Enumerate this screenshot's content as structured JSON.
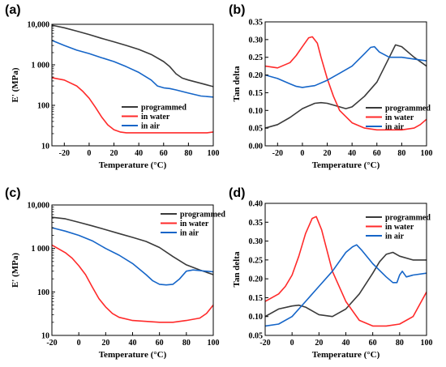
{
  "figure": {
    "axis_labels": {
      "x": "Temperature (°C)",
      "y_modulus": "E' (MPa)",
      "y_tan": "Tan delta"
    },
    "series_names": [
      "programmed",
      "in water",
      "in air"
    ],
    "colors": {
      "programmed": "#3a3a3a",
      "in water": "#ff2a2a",
      "in air": "#1565c8"
    }
  },
  "chart_data": [
    {
      "panel": "(a)",
      "type": "line",
      "xlabel": "Temperature (°C)",
      "ylabel": "E' (MPa)",
      "xlim": [
        -30,
        100
      ],
      "ylim": [
        10,
        10000
      ],
      "yscale": "log",
      "xticks": [
        -20,
        0,
        20,
        40,
        60,
        80,
        100
      ],
      "yticks": [
        10,
        100,
        1000,
        10000
      ],
      "ytick_labels": [
        "10",
        "100",
        "1 000",
        "10,000"
      ],
      "legend": "center-right",
      "series": [
        {
          "name": "programmed",
          "color": "#3a3a3a",
          "x": [
            -30,
            -20,
            -10,
            0,
            10,
            20,
            30,
            40,
            50,
            60,
            65,
            70,
            75,
            80,
            90,
            100
          ],
          "y": [
            9500,
            8200,
            6800,
            5600,
            4500,
            3700,
            3000,
            2400,
            1800,
            1200,
            900,
            600,
            470,
            420,
            350,
            290
          ]
        },
        {
          "name": "in water",
          "color": "#ff2a2a",
          "x": [
            -30,
            -20,
            -10,
            -5,
            0,
            5,
            10,
            15,
            20,
            25,
            30,
            40,
            60,
            80,
            95,
            100
          ],
          "y": [
            480,
            420,
            300,
            220,
            150,
            90,
            52,
            33,
            25,
            22,
            21,
            21,
            21,
            21,
            21,
            22
          ]
        },
        {
          "name": "in air",
          "color": "#1565c8",
          "x": [
            -30,
            -20,
            -10,
            0,
            10,
            20,
            30,
            40,
            50,
            55,
            60,
            65,
            70,
            80,
            90,
            100
          ],
          "y": [
            4000,
            3000,
            2300,
            1900,
            1500,
            1200,
            900,
            650,
            420,
            300,
            270,
            260,
            240,
            200,
            170,
            160
          ]
        }
      ]
    },
    {
      "panel": "(b)",
      "type": "line",
      "xlabel": "Temperature (°C)",
      "ylabel": "Tan delta",
      "xlim": [
        -30,
        100
      ],
      "ylim": [
        0.0,
        0.35
      ],
      "xticks": [
        -20,
        0,
        20,
        40,
        60,
        80,
        100
      ],
      "yticks": [
        0.0,
        0.05,
        0.1,
        0.15,
        0.2,
        0.25,
        0.3,
        0.35
      ],
      "ytick_labels": [
        "0.00",
        "0.05",
        "0.10",
        "0.15",
        "0.20",
        "0.25",
        "0.30",
        "0.35"
      ],
      "legend": "lower-right",
      "series": [
        {
          "name": "programmed",
          "color": "#3a3a3a",
          "x": [
            -30,
            -20,
            -10,
            0,
            10,
            15,
            20,
            30,
            35,
            40,
            50,
            60,
            70,
            75,
            80,
            90,
            100
          ],
          "y": [
            0.05,
            0.06,
            0.08,
            0.105,
            0.12,
            0.122,
            0.12,
            0.11,
            0.105,
            0.11,
            0.14,
            0.18,
            0.25,
            0.285,
            0.28,
            0.25,
            0.225
          ]
        },
        {
          "name": "in water",
          "color": "#ff2a2a",
          "x": [
            -30,
            -20,
            -10,
            -5,
            0,
            5,
            8,
            12,
            15,
            20,
            25,
            30,
            40,
            50,
            60,
            70,
            80,
            90,
            95,
            100
          ],
          "y": [
            0.225,
            0.22,
            0.235,
            0.255,
            0.28,
            0.305,
            0.308,
            0.29,
            0.25,
            0.19,
            0.14,
            0.1,
            0.065,
            0.05,
            0.045,
            0.045,
            0.045,
            0.05,
            0.06,
            0.075
          ]
        },
        {
          "name": "in air",
          "color": "#1565c8",
          "x": [
            -30,
            -20,
            -10,
            -5,
            0,
            10,
            20,
            30,
            40,
            50,
            55,
            58,
            62,
            70,
            80,
            90,
            100
          ],
          "y": [
            0.2,
            0.19,
            0.175,
            0.168,
            0.165,
            0.17,
            0.185,
            0.205,
            0.225,
            0.26,
            0.278,
            0.28,
            0.265,
            0.25,
            0.25,
            0.245,
            0.24
          ]
        }
      ]
    },
    {
      "panel": "(c)",
      "type": "line",
      "xlabel": "Temperature (°C)",
      "ylabel": "E' (MPa)",
      "xlim": [
        -20,
        100
      ],
      "ylim": [
        10,
        10000
      ],
      "yscale": "log",
      "xticks": [
        -20,
        0,
        20,
        40,
        60,
        80,
        100
      ],
      "yticks": [
        10,
        100,
        1000,
        10000
      ],
      "ytick_labels": [
        "10",
        "100",
        "1 000",
        "10,000"
      ],
      "legend": "top-right",
      "series": [
        {
          "name": "programmed",
          "color": "#3a3a3a",
          "x": [
            -20,
            -10,
            0,
            10,
            20,
            30,
            40,
            50,
            60,
            70,
            80,
            90,
            100
          ],
          "y": [
            5200,
            4800,
            4000,
            3300,
            2700,
            2200,
            1800,
            1450,
            1050,
            650,
            420,
            320,
            250
          ]
        },
        {
          "name": "in water",
          "color": "#ff2a2a",
          "x": [
            -20,
            -10,
            -5,
            0,
            5,
            10,
            15,
            20,
            25,
            30,
            40,
            50,
            60,
            70,
            80,
            90,
            95,
            100
          ],
          "y": [
            1200,
            800,
            600,
            400,
            250,
            130,
            70,
            45,
            32,
            26,
            22,
            21,
            20,
            20,
            22,
            25,
            32,
            50
          ]
        },
        {
          "name": "in air",
          "color": "#1565c8",
          "x": [
            -20,
            -10,
            0,
            10,
            20,
            30,
            40,
            50,
            55,
            60,
            65,
            70,
            75,
            80,
            85,
            90,
            100
          ],
          "y": [
            3000,
            2500,
            2000,
            1500,
            1000,
            700,
            450,
            250,
            180,
            150,
            145,
            150,
            200,
            300,
            320,
            310,
            290
          ]
        }
      ]
    },
    {
      "panel": "(d)",
      "type": "line",
      "xlabel": "Temperature (°C)",
      "ylabel": "Tan delta",
      "xlim": [
        -20,
        100
      ],
      "ylim": [
        0.05,
        0.4
      ],
      "xticks": [
        -20,
        0,
        20,
        40,
        60,
        80,
        100
      ],
      "yticks": [
        0.05,
        0.1,
        0.15,
        0.2,
        0.25,
        0.3,
        0.35,
        0.4
      ],
      "ytick_labels": [
        "0.05",
        "0.10",
        "0.15",
        "0.20",
        "0.25",
        "0.30",
        "0.35",
        "0.40"
      ],
      "legend": "top-right",
      "series": [
        {
          "name": "programmed",
          "color": "#3a3a3a",
          "x": [
            -20,
            -10,
            0,
            5,
            10,
            20,
            30,
            40,
            50,
            60,
            65,
            70,
            75,
            80,
            90,
            100
          ],
          "y": [
            0.1,
            0.12,
            0.128,
            0.13,
            0.125,
            0.105,
            0.1,
            0.12,
            0.16,
            0.215,
            0.245,
            0.265,
            0.27,
            0.26,
            0.25,
            0.25
          ]
        },
        {
          "name": "in water",
          "color": "#ff2a2a",
          "x": [
            -20,
            -10,
            -5,
            0,
            5,
            10,
            15,
            18,
            22,
            30,
            40,
            50,
            60,
            70,
            80,
            90,
            100
          ],
          "y": [
            0.14,
            0.16,
            0.18,
            0.21,
            0.26,
            0.32,
            0.36,
            0.365,
            0.33,
            0.22,
            0.14,
            0.09,
            0.075,
            0.075,
            0.08,
            0.1,
            0.165
          ]
        },
        {
          "name": "in air",
          "color": "#1565c8",
          "x": [
            -20,
            -10,
            0,
            10,
            20,
            30,
            40,
            45,
            48,
            52,
            60,
            70,
            75,
            78,
            80,
            82,
            85,
            90,
            100
          ],
          "y": [
            0.075,
            0.08,
            0.1,
            0.14,
            0.18,
            0.22,
            0.27,
            0.285,
            0.29,
            0.275,
            0.24,
            0.205,
            0.19,
            0.19,
            0.21,
            0.22,
            0.205,
            0.21,
            0.215
          ]
        }
      ]
    }
  ]
}
